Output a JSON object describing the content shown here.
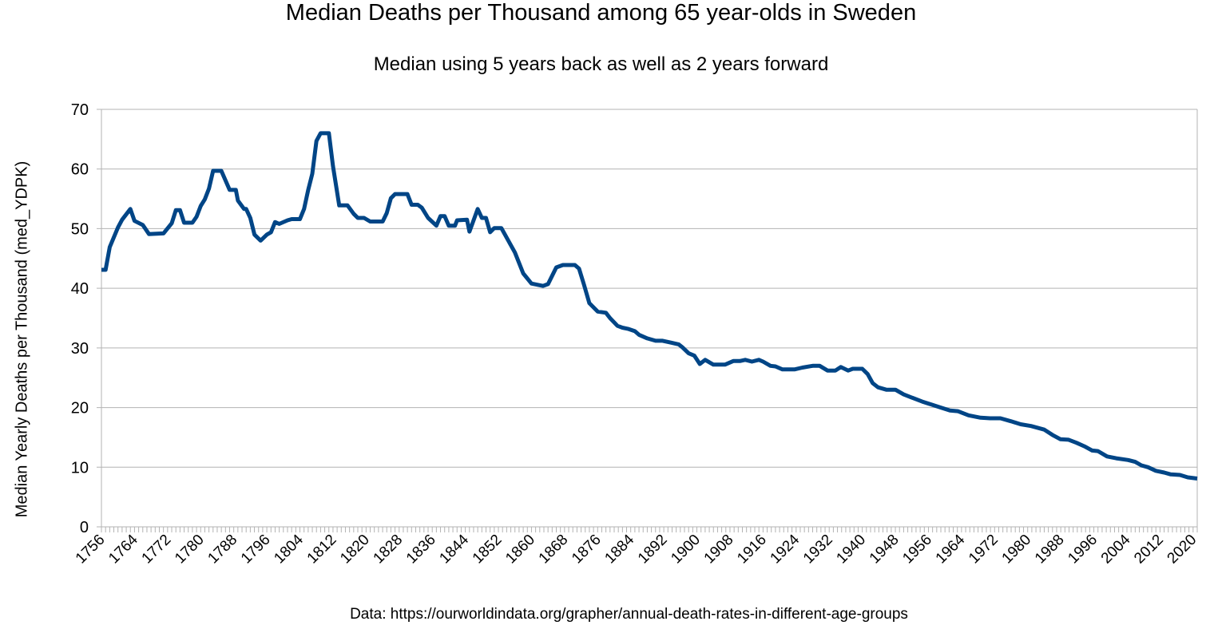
{
  "chart_data": {
    "type": "line",
    "title": "Median Deaths per Thousand among 65 year-olds in Sweden",
    "subtitle": "Median using 5 years back as well as 2 years forward",
    "xlabel": "",
    "ylabel": "Median Yearly Deaths per Thousand (med_YDPK)",
    "footer": "Data: https://ourworldindata.org/grapher/annual-death-rates-in-different-age-groups",
    "xlim": [
      1756,
      2021
    ],
    "ylim": [
      0,
      70
    ],
    "yticks": [
      0,
      10,
      20,
      30,
      40,
      50,
      60,
      70
    ],
    "xtick_labels": [
      "1756",
      "1764",
      "1772",
      "1780",
      "1788",
      "1796",
      "1804",
      "1812",
      "1820",
      "1828",
      "1836",
      "1844",
      "1852",
      "1860",
      "1868",
      "1876",
      "1884",
      "1892",
      "1900",
      "1908",
      "1916",
      "1924",
      "1932",
      "1940",
      "1948",
      "1956",
      "1964",
      "1972",
      "1980",
      "1988",
      "1996",
      "2004",
      "2012",
      "2020"
    ],
    "grid": true,
    "legend": "none",
    "line_color": "#004586",
    "series": [
      {
        "name": "med_YDPK",
        "x": [
          1756,
          1757,
          1758,
          1760,
          1761,
          1763,
          1764,
          1766,
          1767.5,
          1771,
          1773,
          1774,
          1775,
          1776,
          1778,
          1779,
          1780,
          1781,
          1782,
          1783,
          1785,
          1787,
          1788.5,
          1789,
          1790.5,
          1791,
          1792,
          1793,
          1794.5,
          1796,
          1797,
          1798,
          1799,
          1801,
          1802,
          1804,
          1805,
          1806,
          1807,
          1808,
          1809,
          1811,
          1812,
          1813.5,
          1815.5,
          1817,
          1818,
          1819.5,
          1821,
          1824,
          1825,
          1826,
          1827,
          1830,
          1831,
          1832.5,
          1833.5,
          1835,
          1837,
          1838,
          1839,
          1840,
          1841.5,
          1842,
          1844.4,
          1845,
          1847,
          1848,
          1849,
          1850,
          1851,
          1852.7,
          1856,
          1858,
          1860,
          1862.8,
          1864,
          1866,
          1867.6,
          1870.5,
          1871.5,
          1872.7,
          1874,
          1876,
          1878,
          1879,
          1880.8,
          1882,
          1883.3,
          1885,
          1886,
          1888,
          1890,
          1891.7,
          1893.6,
          1895.6,
          1896.5,
          1898,
          1899.4,
          1900.7,
          1902,
          1904,
          1906.8,
          1908.8,
          1910.4,
          1911.7,
          1913.3,
          1915,
          1916,
          1917.8,
          1919,
          1920.7,
          1923.6,
          1925.5,
          1928,
          1929.7,
          1931.6,
          1933.5,
          1934.8,
          1936.6,
          1937.7,
          1940,
          1941.3,
          1942.5,
          1943.8,
          1945.8,
          1948,
          1950,
          1951.9,
          1954.5,
          1956.7,
          1959,
          1961.2,
          1963.1,
          1965.7,
          1968.6,
          1970.9,
          1973.4,
          1976,
          1978.3,
          1980.8,
          1984,
          1986,
          1987.9,
          1989.9,
          1991.8,
          1993.7,
          1995.6,
          1997,
          1999.2,
          2001.4,
          2004.3,
          2006,
          2007.5,
          2009.1,
          2011,
          2013,
          2014.6,
          2016.8,
          2018.7,
          2021
        ],
        "y": [
          43.1,
          43.1,
          46.9,
          50.2,
          51.5,
          53.3,
          51.3,
          50.6,
          49.1,
          49.2,
          50.9,
          53.1,
          53.1,
          51.0,
          51.0,
          52.0,
          53.8,
          54.9,
          56.7,
          59.7,
          59.7,
          56.5,
          56.5,
          54.7,
          53.3,
          53.3,
          51.8,
          49.0,
          48.0,
          49.0,
          49.4,
          51.1,
          50.8,
          51.4,
          51.6,
          51.6,
          53.3,
          56.5,
          59.2,
          64.7,
          66.0,
          66.0,
          60.5,
          53.9,
          53.9,
          52.5,
          51.8,
          51.8,
          51.2,
          51.2,
          52.6,
          55.1,
          55.8,
          55.8,
          54.0,
          54.0,
          53.5,
          51.8,
          50.5,
          52.1,
          52.1,
          50.5,
          50.5,
          51.4,
          51.5,
          49.5,
          53.3,
          51.8,
          51.8,
          49.4,
          50.1,
          50.1,
          46.0,
          42.5,
          40.8,
          40.4,
          40.7,
          43.5,
          43.9,
          43.9,
          43.3,
          40.6,
          37.5,
          36.1,
          35.9,
          35.0,
          33.7,
          33.4,
          33.2,
          32.8,
          32.2,
          31.6,
          31.2,
          31.2,
          30.9,
          30.6,
          30.1,
          29.1,
          28.7,
          27.3,
          28.0,
          27.2,
          27.2,
          27.8,
          27.8,
          28.0,
          27.7,
          28.0,
          27.7,
          27.0,
          26.9,
          26.4,
          26.4,
          26.7,
          27.0,
          27.0,
          26.2,
          26.2,
          26.8,
          26.2,
          26.5,
          26.5,
          25.6,
          24.1,
          23.4,
          23.0,
          23.0,
          22.2,
          21.7,
          21.0,
          20.5,
          20.0,
          19.5,
          19.4,
          18.7,
          18.3,
          18.2,
          18.2,
          17.7,
          17.2,
          16.9,
          16.3,
          15.4,
          14.7,
          14.6,
          14.1,
          13.5,
          12.8,
          12.7,
          11.8,
          11.5,
          11.2,
          10.9,
          10.3,
          10.0,
          9.4,
          9.1,
          8.8,
          8.7,
          8.3,
          8.1
        ]
      }
    ]
  }
}
